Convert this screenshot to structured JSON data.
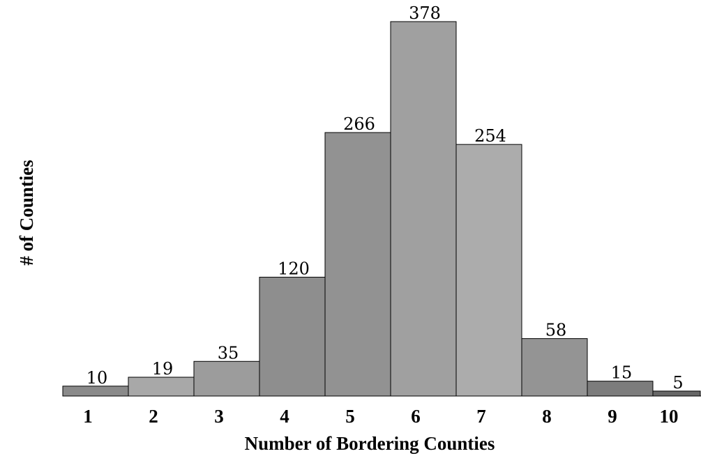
{
  "chart_data": {
    "type": "bar",
    "categories": [
      "1",
      "2",
      "3",
      "4",
      "5",
      "6",
      "7",
      "8",
      "9",
      "10"
    ],
    "values": [
      10,
      19,
      35,
      120,
      266,
      378,
      254,
      58,
      15,
      5
    ],
    "bar_colors": [
      "#8a8a8a",
      "#a8a8a8",
      "#9c9c9c",
      "#8e8e8e",
      "#929292",
      "#a0a0a0",
      "#acacac",
      "#949494",
      "#7c7c7c",
      "#676767"
    ],
    "title": "",
    "xlabel": "Number of Bordering Counties",
    "ylabel": "# of Counties",
    "ylim": [
      0,
      378
    ],
    "grid": false,
    "legend": "none"
  }
}
